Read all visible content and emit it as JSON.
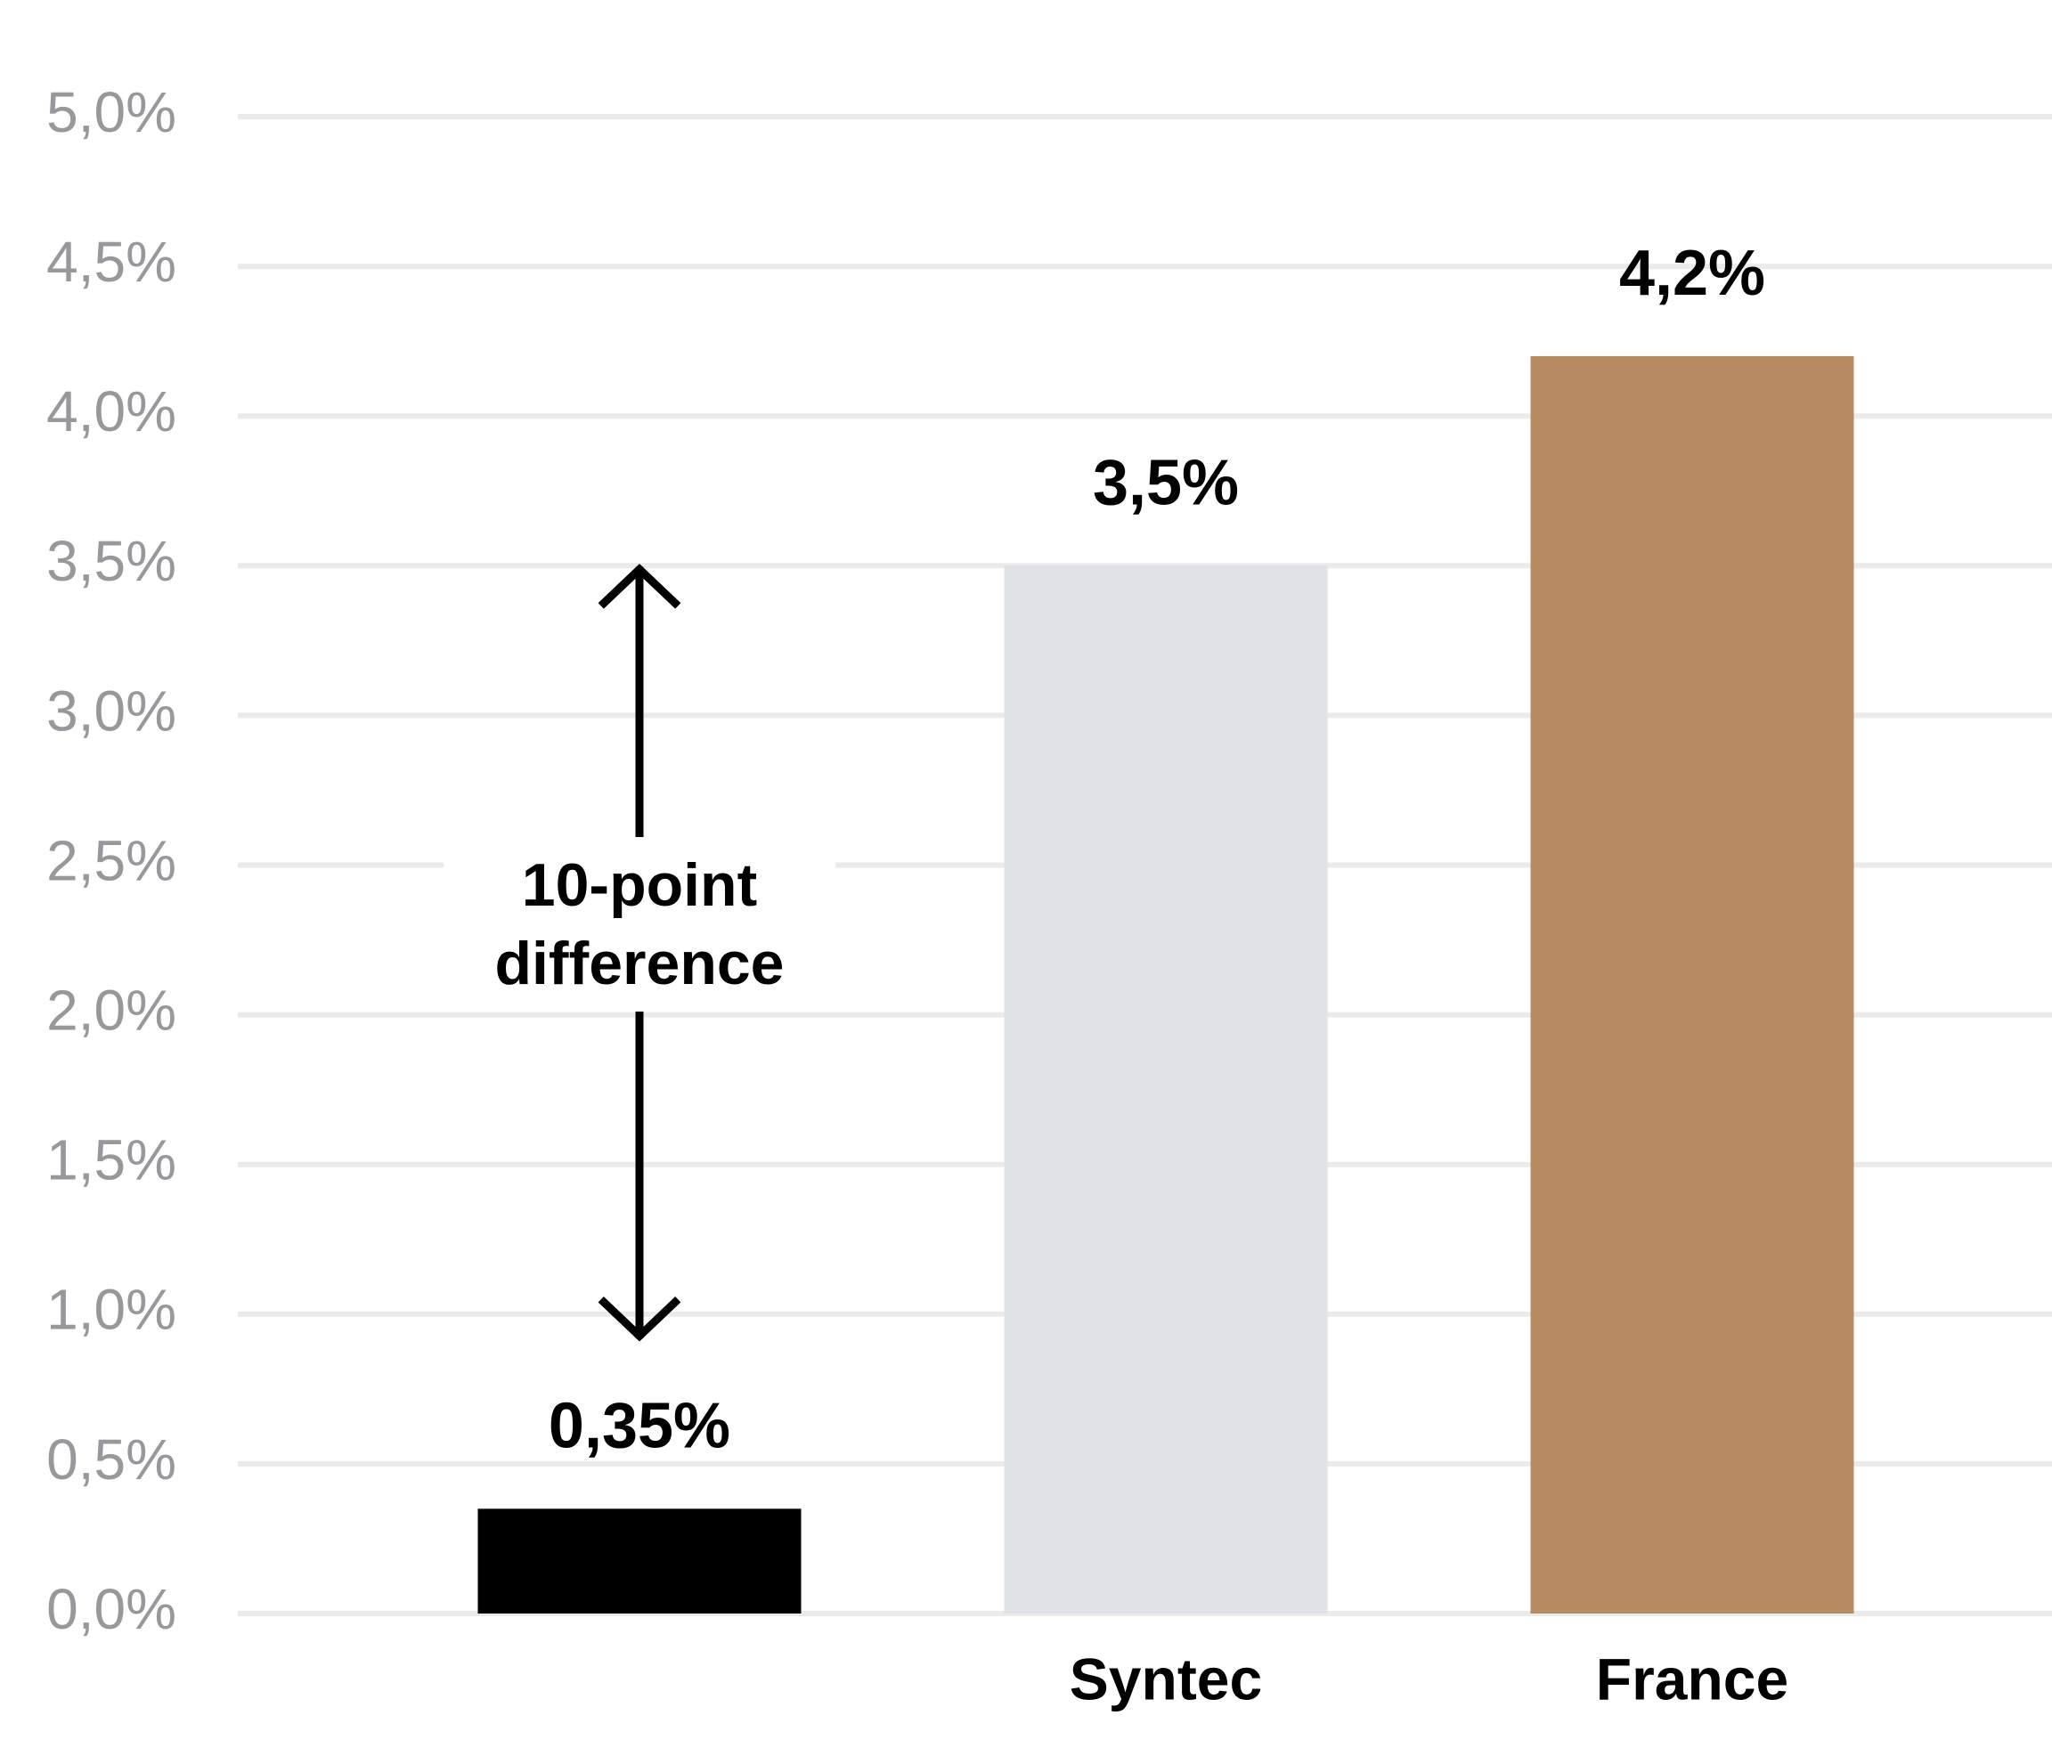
{
  "chart_data": {
    "type": "bar",
    "categories": [
      null,
      "Syntec",
      "France"
    ],
    "values": [
      0.35,
      3.5,
      4.2
    ],
    "value_labels": [
      "0,35%",
      "3,5%",
      "4,2%"
    ],
    "colors": [
      "#000000",
      "#dfe2e6",
      "#b68b61"
    ],
    "ylim": [
      0,
      5
    ],
    "yticks": [
      {
        "value": 0,
        "label": "0,0%"
      },
      {
        "value": 0.5,
        "label": "0,5%"
      },
      {
        "value": 1,
        "label": "1,0%"
      },
      {
        "value": 1.5,
        "label": "1,5%"
      },
      {
        "value": 2,
        "label": "2,0%"
      },
      {
        "value": 2.5,
        "label": "2,5%"
      },
      {
        "value": 3,
        "label": "3,0%"
      },
      {
        "value": 3.5,
        "label": "3,5%"
      },
      {
        "value": 4,
        "label": "4,0%"
      },
      {
        "value": 4.5,
        "label": "4,5%"
      },
      {
        "value": 5,
        "label": "5,0%"
      }
    ],
    "grid": true,
    "annotation": "10-point difference"
  }
}
